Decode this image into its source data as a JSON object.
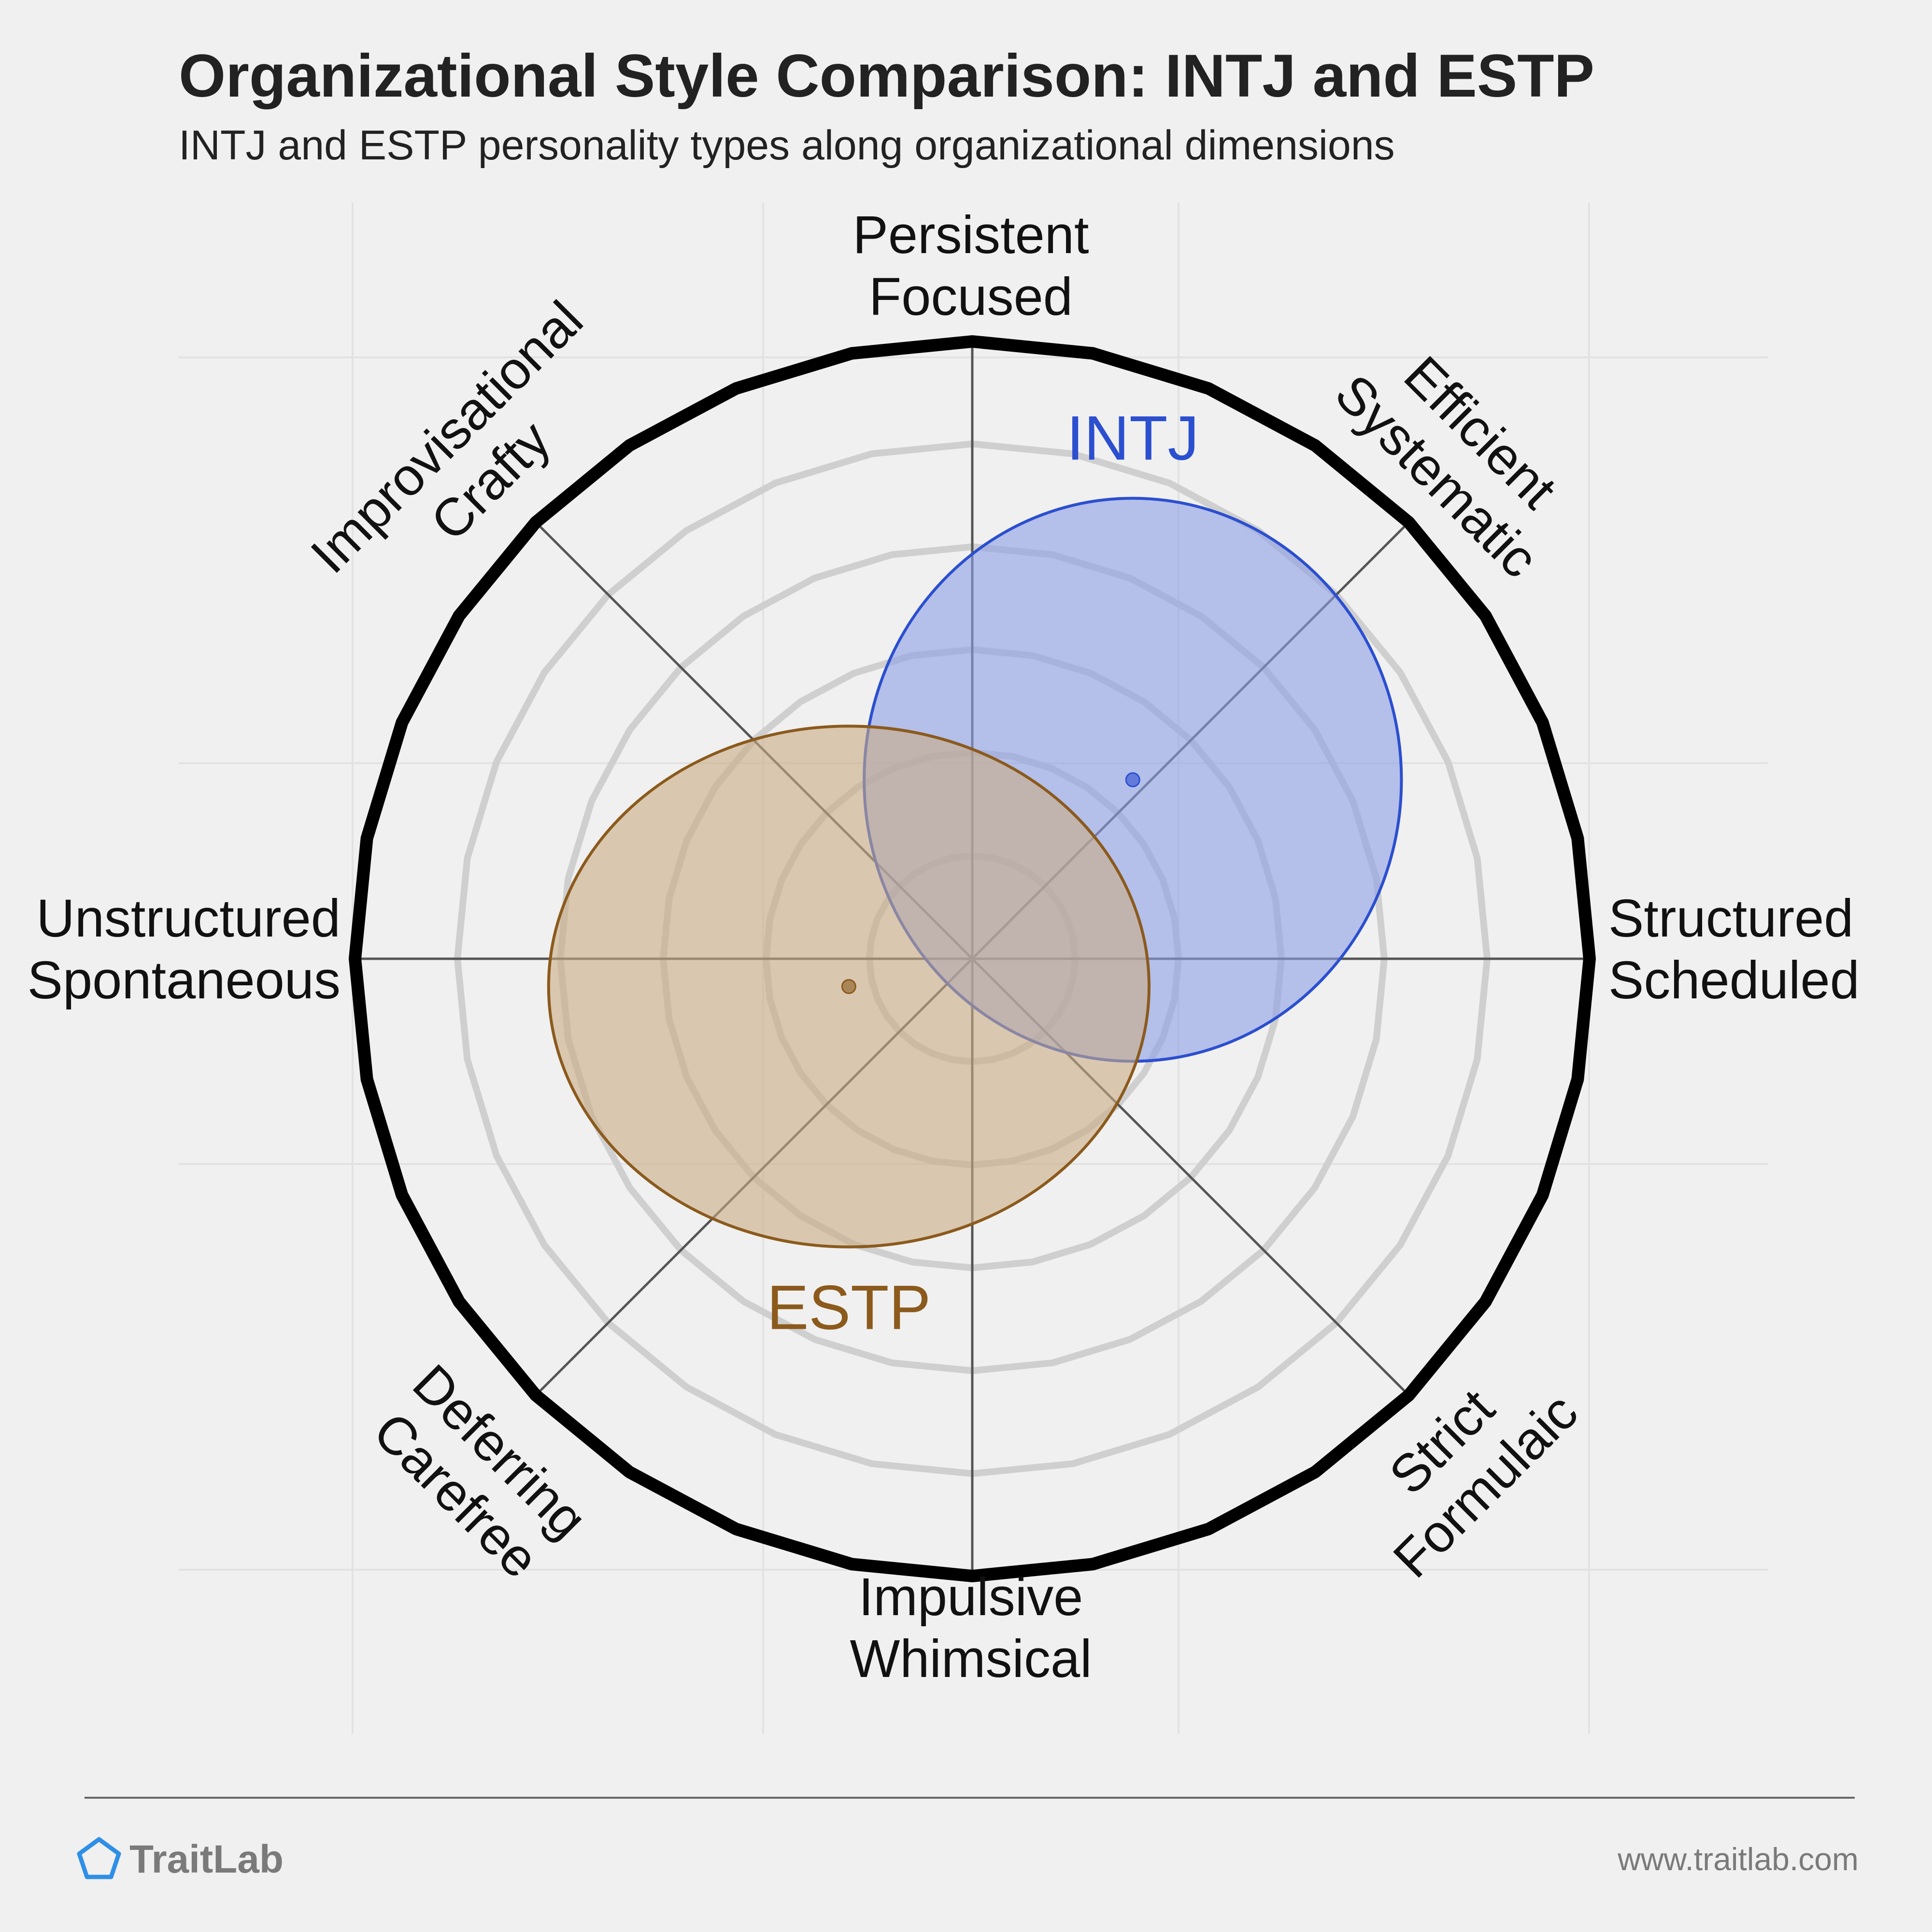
{
  "title": "Organizational Style Comparison: INTJ and ESTP",
  "subtitle": "INTJ and ESTP personality types along organizational dimensions",
  "chart_data": {
    "type": "radar-bubble",
    "axes": [
      {
        "id": "top",
        "lines": [
          "Persistent",
          "Focused"
        ]
      },
      {
        "id": "top-right",
        "lines": [
          "Efficient",
          "Systematic"
        ]
      },
      {
        "id": "right",
        "lines": [
          "Structured",
          "Scheduled"
        ]
      },
      {
        "id": "bottom-right",
        "lines": [
          "Strict",
          "Formulaic"
        ]
      },
      {
        "id": "bottom",
        "lines": [
          "Impulsive",
          "Whimsical"
        ]
      },
      {
        "id": "bottom-left",
        "lines": [
          "Deferring",
          "Carefree"
        ]
      },
      {
        "id": "left",
        "lines": [
          "Unstructured",
          "Spontaneous"
        ]
      },
      {
        "id": "top-left",
        "lines": [
          "Improvisational",
          "Crafty"
        ]
      }
    ],
    "grid_rings": 6,
    "range": [
      -1,
      1
    ],
    "series": [
      {
        "name": "INTJ",
        "x": 0.26,
        "y": 0.29,
        "rx": 0.34,
        "ry": 0.4,
        "color": "#2b4fcf",
        "fill": "#8c9ee6"
      },
      {
        "name": "ESTP",
        "x": -0.2,
        "y": -0.045,
        "rx": 0.38,
        "ry": 0.37,
        "color": "#8b5a1c",
        "fill": "#c9ab85"
      }
    ]
  },
  "footer": {
    "brand": "TraitLab",
    "url": "www.traitlab.com",
    "logo_icon": "pentagon-icon"
  }
}
